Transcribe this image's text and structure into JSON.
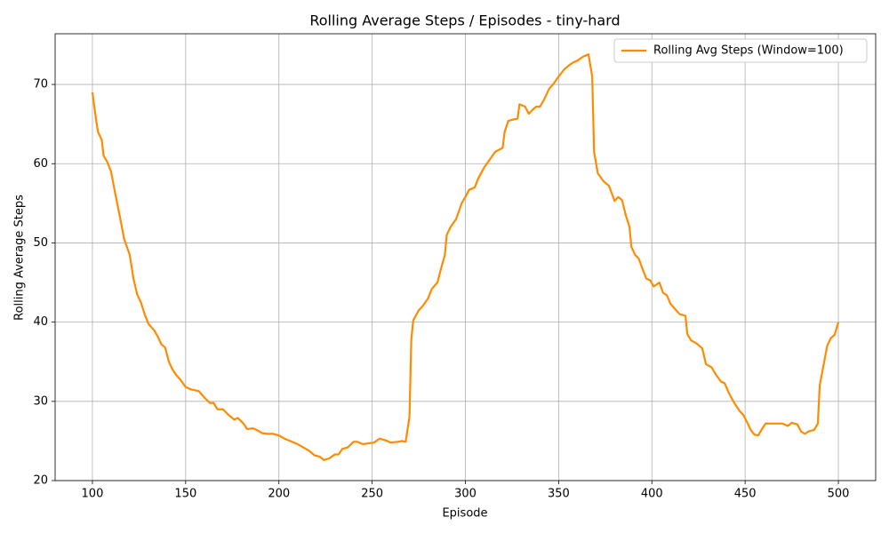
{
  "chart_data": {
    "type": "line",
    "title": "Rolling Average Steps / Episodes - tiny-hard",
    "x_label": "Episode",
    "y_label": "Rolling Average Steps",
    "xlim": [
      80,
      520
    ],
    "ylim": [
      20,
      76.4
    ],
    "xticks": [
      100,
      150,
      200,
      250,
      300,
      350,
      400,
      450,
      500
    ],
    "yticks": [
      20,
      30,
      40,
      50,
      60,
      70
    ],
    "grid": true,
    "legend": "upper right",
    "x": [
      100,
      102,
      103,
      105,
      106,
      108,
      110,
      112,
      115,
      117,
      120,
      122,
      124,
      126,
      128,
      130,
      133,
      135,
      137,
      139,
      141,
      143,
      145,
      147,
      150,
      153,
      157,
      160,
      163,
      165,
      167,
      170,
      173,
      176,
      178,
      181,
      183,
      186,
      188,
      191,
      194,
      197,
      200,
      203,
      207,
      210,
      213,
      216,
      219,
      222,
      224,
      227,
      230,
      232,
      234,
      237,
      240,
      242,
      245,
      248,
      251,
      254,
      257,
      260,
      264,
      266,
      268,
      269,
      270,
      271,
      272,
      275,
      277,
      280,
      282,
      285,
      287,
      289,
      290,
      292,
      295,
      298,
      300,
      302,
      305,
      307,
      310,
      313,
      316,
      320,
      321,
      323,
      326,
      328,
      329,
      332,
      334,
      336,
      338,
      340,
      342,
      345,
      347,
      350,
      353,
      356,
      358,
      360,
      363,
      366,
      368,
      369,
      371,
      374,
      377,
      380,
      382,
      384,
      386,
      388,
      389,
      391,
      393,
      395,
      397,
      399,
      401,
      404,
      406,
      408,
      410,
      413,
      415,
      418,
      419,
      421,
      424,
      427,
      429,
      432,
      434,
      437,
      439,
      441,
      443,
      445,
      447,
      449,
      451,
      453,
      455,
      457,
      459,
      461,
      464,
      467,
      470,
      473,
      475,
      478,
      480,
      482,
      484,
      487,
      489,
      490,
      492,
      494,
      496,
      498,
      500
    ],
    "series": [
      {
        "name": "Rolling Avg Steps (Window=100)",
        "color": "#ff8c00",
        "values": [
          69,
          65.5,
          64,
          63,
          61,
          60.2,
          59,
          56.5,
          53,
          50.5,
          48.5,
          45.5,
          43.5,
          42.5,
          41,
          39.8,
          39,
          38.2,
          37.2,
          36.8,
          35,
          34,
          33.3,
          32.8,
          31.8,
          31.5,
          31.3,
          30.5,
          29.8,
          29.8,
          29,
          29,
          28.3,
          27.7,
          27.9,
          27.2,
          26.5,
          26.6,
          26.4,
          26,
          25.9,
          25.9,
          25.7,
          25.3,
          24.9,
          24.6,
          24.2,
          23.8,
          23.2,
          23,
          22.6,
          22.8,
          23.3,
          23.3,
          24,
          24.2,
          24.9,
          24.9,
          24.6,
          24.7,
          24.8,
          25.3,
          25.1,
          24.8,
          24.9,
          25,
          24.9,
          26.5,
          28,
          37.8,
          40.2,
          41.5,
          42,
          43,
          44.2,
          45,
          46.8,
          48.5,
          51,
          52,
          53,
          55,
          55.8,
          56.7,
          57,
          58.2,
          59.5,
          60.5,
          61.5,
          62,
          64,
          65.4,
          65.6,
          65.7,
          67.5,
          67.2,
          66.3,
          66.8,
          67.2,
          67.2,
          68,
          69.5,
          70,
          71,
          71.9,
          72.5,
          72.8,
          73,
          73.5,
          73.8,
          71,
          61.5,
          58.8,
          57.8,
          57.2,
          55.3,
          55.8,
          55.4,
          53.5,
          52,
          49.5,
          48.5,
          48,
          46.7,
          45.5,
          45.3,
          44.5,
          45,
          43.7,
          43.4,
          42.3,
          41.5,
          41,
          40.8,
          38.5,
          37.7,
          37.3,
          36.7,
          34.7,
          34.3,
          33.5,
          32.5,
          32.3,
          31.2,
          30.3,
          29.5,
          28.8,
          28.3,
          27.4,
          26.4,
          25.8,
          25.7,
          26.5,
          27.2,
          27.2,
          27.2,
          27.2,
          26.9,
          27.3,
          27.1,
          26.2,
          25.9,
          26.2,
          26.4,
          27.2,
          32,
          34.5,
          37,
          38,
          38.4,
          40
        ]
      }
    ]
  }
}
